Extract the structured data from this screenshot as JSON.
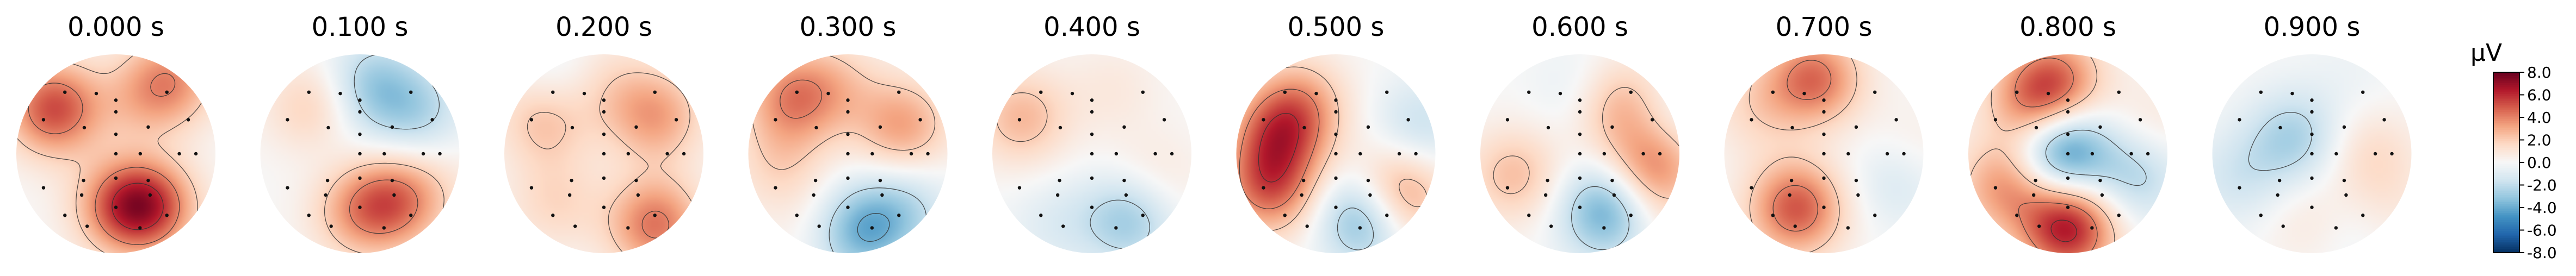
{
  "chart_data": {
    "type": "heatmap",
    "subtype": "topomap-series",
    "panels": [
      {
        "title": "0.000 s",
        "sources": [
          [
            0.3,
            -0.08,
            -0.6
          ],
          [
            0.52,
            0.42,
            1.6
          ],
          [
            0.62,
            0.32,
            4.8
          ],
          [
            0.78,
            -0.8,
            5.2
          ],
          [
            0.92,
            -0.3,
            3.5
          ],
          [
            0.55,
            0.5,
            2.0
          ],
          [
            0.5,
            -0.35,
            1.5
          ]
        ]
      },
      {
        "title": "0.100 s",
        "sources": [
          [
            0.3,
            -0.88,
            -0.5
          ],
          [
            0.58,
            0.5,
            3.0
          ],
          [
            0.62,
            0.28,
            3.6
          ],
          [
            0.65,
            -0.75,
            2.2
          ],
          [
            0.7,
            -0.45,
            -2.8
          ],
          [
            0.72,
            -0.2,
            -2.2
          ],
          [
            0.9,
            0.1,
            0.5
          ]
        ]
      },
      {
        "title": "0.200 s",
        "sources": [
          [
            0.7,
            -0.82,
            2.8
          ],
          [
            0.7,
            -0.5,
            1.5
          ],
          [
            0.7,
            0.75,
            1.6
          ],
          [
            0.65,
            -0.2,
            3.2
          ],
          [
            0.9,
            0.3,
            3.8
          ],
          [
            0.8,
            -0.68,
            -1.6
          ],
          [
            0.8,
            0.3,
            0.5
          ]
        ]
      },
      {
        "title": "0.300 s",
        "sources": [
          [
            0.8,
            -0.75,
            3.6
          ],
          [
            0.7,
            -0.55,
            1.6
          ],
          [
            0.62,
            -0.15,
            3.2
          ],
          [
            0.7,
            0.95,
            1.6
          ],
          [
            0.8,
            0.45,
            -3.6
          ],
          [
            0.8,
            0.25,
            -2.0
          ],
          [
            0.8,
            0.65,
            0.5
          ]
        ]
      },
      {
        "title": "0.400 s",
        "sources": [
          [
            0.8,
            -0.85,
            2.6
          ],
          [
            0.7,
            -0.4,
            0.8
          ],
          [
            0.62,
            0.15,
            1.2
          ],
          [
            0.7,
            0.3,
            -1.8
          ],
          [
            0.8,
            0.65,
            -1.0
          ],
          [
            0.8,
            0.35,
            -1.5
          ],
          [
            0.9,
            0.15,
            0.3
          ]
        ]
      },
      {
        "title": "0.500 s",
        "sources": [
          [
            0.62,
            -0.7,
            2.8
          ],
          [
            0.7,
            0.2,
            3.8
          ],
          [
            0.62,
            -0.9,
            4.0
          ],
          [
            0.75,
            0.85,
            4.5
          ],
          [
            0.7,
            0.35,
            -4.8
          ],
          [
            0.9,
            -0.1,
            -1.8
          ],
          [
            0.9,
            0.2,
            1.0
          ]
        ]
      },
      {
        "title": "0.600 s",
        "sources": [
          [
            0.62,
            -0.3,
            3.5
          ],
          [
            0.75,
            0.05,
            4.2
          ],
          [
            0.6,
            -0.45,
            -1.6
          ],
          [
            0.7,
            0.9,
            2.4
          ],
          [
            0.65,
            0.35,
            -4.6
          ],
          [
            0.9,
            -0.1,
            -1.2
          ],
          [
            0.9,
            0.25,
            1.0
          ]
        ]
      },
      {
        "title": "0.700 s",
        "sources": [
          [
            0.8,
            -0.8,
            1.6
          ],
          [
            0.78,
            -0.55,
            1.4
          ],
          [
            0.6,
            -0.6,
            -1.4
          ],
          [
            0.62,
            0.65,
            5.0
          ],
          [
            0.72,
            -0.55,
            4.2
          ],
          [
            0.8,
            0.1,
            -1.6
          ],
          [
            0.9,
            0.0,
            1.0
          ]
        ]
      },
      {
        "title": "0.800 s",
        "sources": [
          [
            0.08,
            -0.85,
            -5.6
          ],
          [
            0.6,
            -0.7,
            3.4
          ],
          [
            0.75,
            -0.55,
            3.8
          ],
          [
            0.75,
            0.5,
            6.5
          ],
          [
            0.7,
            0.85,
            3.6
          ],
          [
            0.72,
            0.1,
            -2.4
          ],
          [
            0.9,
            -0.1,
            1.0
          ]
        ]
      },
      {
        "title": "0.900 s",
        "sources": [
          [
            0.25,
            -0.78,
            -2.6
          ],
          [
            0.6,
            0.0,
            1.4
          ],
          [
            0.75,
            0.4,
            -2.4
          ],
          [
            0.8,
            0.9,
            -1.4
          ],
          [
            0.7,
            0.45,
            2.6
          ],
          [
            0.9,
            0.2,
            0.8
          ],
          [
            0.9,
            -0.35,
            -0.4
          ]
        ]
      }
    ],
    "sensor_positions_polar": [
      [
        0.82,
        -0.72
      ],
      [
        0.82,
        -0.86
      ],
      [
        0.82,
        -0.28
      ],
      [
        0.82,
        -0.14
      ],
      [
        0.2,
        -0.5
      ],
      [
        0.43,
        -0.22
      ],
      [
        0.42,
        -0.78
      ],
      [
        0.55,
        -0.5
      ],
      [
        0.25,
        0.0
      ],
      [
        0.0,
        0.0
      ],
      [
        0.25,
        0.5
      ],
      [
        0.55,
        0.5
      ],
      [
        0.8,
        0.4
      ],
      [
        0.8,
        0.62
      ],
      [
        0.82,
        0.0
      ],
      [
        0.82,
        0.28
      ],
      [
        0.82,
        0.72
      ],
      [
        0.43,
        0.22
      ],
      [
        0.43,
        0.78
      ],
      [
        0.82,
        0.86
      ],
      [
        0.55,
        0.28
      ],
      [
        0.55,
        0.72
      ],
      [
        0.65,
        0.0
      ],
      [
        0.43,
        -0.5
      ],
      [
        0.65,
        -0.6
      ]
    ],
    "colorbar": {
      "unit": "μV",
      "vmin": -8.0,
      "vmax": 8.0,
      "ticks": [
        8.0,
        6.0,
        4.0,
        2.0,
        0.0,
        -2.0,
        -4.0,
        -6.0,
        -8.0
      ],
      "tick_labels": [
        "8.0",
        "6.0",
        "4.0",
        "2.0",
        "0.0",
        "-2.0",
        "-4.0",
        "-6.0",
        "-8.0"
      ],
      "colormap": "RdBu_r"
    },
    "contour_levels": [
      -6.0,
      -4.0,
      -2.0,
      2.0,
      4.0,
      6.0
    ],
    "colors": {
      "contour": "#333333",
      "sensor": "#111111",
      "negative": "#053061",
      "positive": "#67001f"
    }
  }
}
